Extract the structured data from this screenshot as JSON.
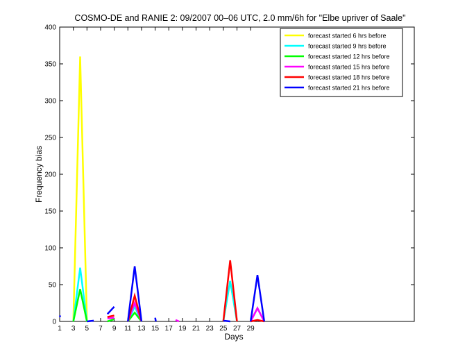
{
  "chart_data": {
    "type": "line",
    "title": "COSMO-DE and RANIE 2: 09/2007 00–06 UTC, 2.0 mm/6h for \"Elbe upriver of Saale\"",
    "xlabel": "Days",
    "ylabel": "Frequency bias",
    "xlim": [
      1,
      53
    ],
    "ylim": [
      0,
      400
    ],
    "x_ticks": [
      1,
      3,
      5,
      7,
      9,
      11,
      13,
      15,
      17,
      19,
      21,
      23,
      25,
      27,
      29
    ],
    "y_ticks": [
      0,
      50,
      100,
      150,
      200,
      250,
      300,
      350,
      400
    ],
    "grid": false,
    "legend_position": "top-right",
    "series": [
      {
        "name": "forecast started 6 hrs before",
        "color": "#ffff00",
        "segments": [
          [
            [
              3,
              0
            ],
            [
              4,
              360
            ],
            [
              5,
              0
            ]
          ],
          [
            [
              11,
              0
            ],
            [
              12,
              22
            ],
            [
              13,
              0
            ]
          ],
          [
            [
              25,
              0
            ],
            [
              26,
              55
            ],
            [
              27,
              0
            ]
          ],
          [
            [
              29,
              0
            ],
            [
              30,
              18
            ],
            [
              31,
              0
            ]
          ]
        ]
      },
      {
        "name": "forecast started 9 hrs before",
        "color": "#00ffff",
        "segments": [
          [
            [
              3,
              0
            ],
            [
              4,
              73
            ],
            [
              5,
              0
            ]
          ],
          [
            [
              11,
              0
            ],
            [
              12,
              20
            ],
            [
              13,
              0
            ]
          ],
          [
            [
              25,
              0
            ],
            [
              26,
              55
            ],
            [
              27,
              0
            ]
          ],
          [
            [
              29,
              0
            ],
            [
              30,
              18
            ],
            [
              31,
              0
            ]
          ]
        ]
      },
      {
        "name": "forecast started 12 hrs before",
        "color": "#00ff00",
        "segments": [
          [
            [
              3,
              0
            ],
            [
              4,
              44
            ],
            [
              5,
              0
            ]
          ],
          [
            [
              8,
              0
            ],
            [
              9,
              3
            ]
          ],
          [
            [
              11,
              0
            ],
            [
              12,
              12
            ],
            [
              13,
              0
            ]
          ]
        ]
      },
      {
        "name": "forecast started 15 hrs before",
        "color": "#ff00ff",
        "segments": [
          [
            [
              8,
              4
            ],
            [
              9,
              5
            ]
          ],
          [
            [
              11,
              0
            ],
            [
              12,
              25
            ],
            [
              13,
              0
            ]
          ],
          [
            [
              18,
              2
            ],
            [
              18.5,
              0
            ]
          ],
          [
            [
              29,
              0
            ],
            [
              30,
              18
            ],
            [
              31,
              0
            ]
          ]
        ]
      },
      {
        "name": "forecast started 18 hrs before",
        "color": "#ff0000",
        "segments": [
          [
            [
              8,
              6
            ],
            [
              9,
              8
            ]
          ],
          [
            [
              11,
              0
            ],
            [
              12,
              35
            ],
            [
              13,
              0
            ]
          ],
          [
            [
              25,
              0
            ],
            [
              26,
              83
            ],
            [
              27,
              0
            ]
          ],
          [
            [
              29,
              0
            ],
            [
              30,
              2
            ],
            [
              31,
              0
            ]
          ]
        ]
      },
      {
        "name": "forecast started 21 hrs before",
        "color": "#0000ff",
        "segments": [
          [
            [
              1,
              8
            ],
            [
              1.1,
              6
            ]
          ],
          [
            [
              5,
              0
            ],
            [
              6,
              1
            ]
          ],
          [
            [
              8,
              10
            ],
            [
              9,
              20
            ]
          ],
          [
            [
              11,
              0
            ],
            [
              12,
              75
            ],
            [
              13,
              0
            ]
          ],
          [
            [
              15,
              5
            ],
            [
              15.1,
              0
            ]
          ],
          [
            [
              25,
              1
            ],
            [
              26,
              0
            ]
          ],
          [
            [
              29,
              0
            ],
            [
              30,
              63
            ],
            [
              31,
              0
            ]
          ]
        ]
      }
    ]
  }
}
